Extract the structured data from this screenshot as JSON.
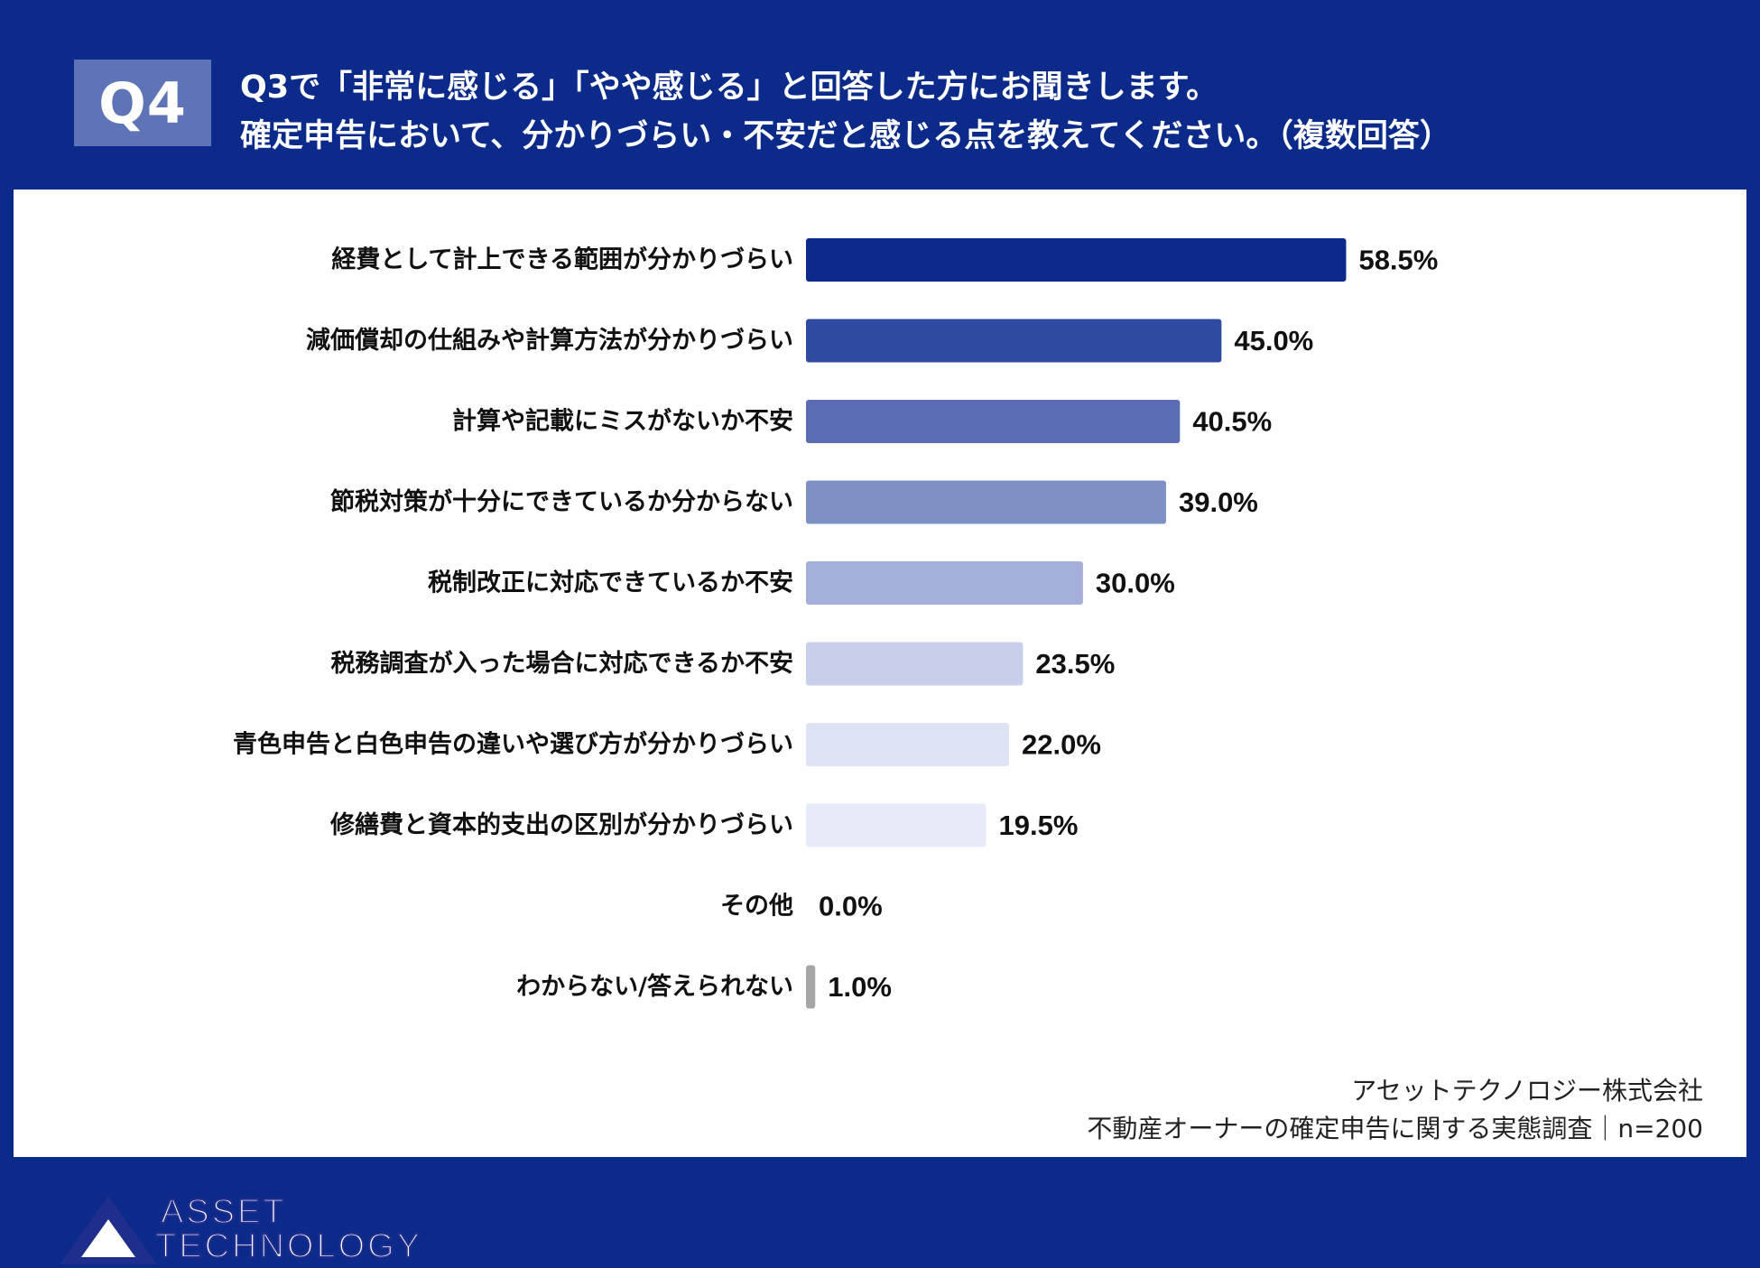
{
  "header": {
    "badge": "Q4",
    "title_line1": "Q3で「非常に感じる」「やや感じる」と回答した方にお聞きします。",
    "title_line2": "確定申告において、分かりづらい・不安だと感じる点を教えてください。（複数回答）"
  },
  "colors": {
    "background": "#0b2a8a",
    "panel": "#ffffff",
    "bar_colors": [
      "#0b2a8a",
      "#2f4aa0",
      "#5a6db3",
      "#7f90c5",
      "#a4b0d9",
      "#c7cfea",
      "#dee4f5",
      "#e6ebf7",
      "#e6ebf7",
      "#a6a6a6"
    ]
  },
  "chart_data": {
    "type": "bar",
    "orientation": "horizontal",
    "categories": [
      "経費として計上できる範囲が分かりづらい",
      "減価償却の仕組みや計算方法が分かりづらい",
      "計算や記載にミスがないか不安",
      "節税対策が十分にできているか分からない",
      "税制改正に対応できているか不安",
      "税務調査が入った場合に対応できるか不安",
      "青色申告と白色申告の違いや選び方が分かりづらい",
      "修繕費と資本的支出の区別が分かりづらい",
      "その他",
      "わからない/答えられない"
    ],
    "values": [
      58.5,
      45.0,
      40.5,
      39.0,
      30.0,
      23.5,
      22.0,
      19.5,
      0.0,
      1.0
    ],
    "value_labels": [
      "58.5%",
      "45.0%",
      "40.5%",
      "39.0%",
      "30.0%",
      "23.5%",
      "22.0%",
      "19.5%",
      "0.0%",
      "1.0%"
    ],
    "xlim": [
      0,
      100
    ],
    "unit": "%",
    "grid": false,
    "legend": "none"
  },
  "logo": {
    "line1": "ASSET",
    "line2": "TECHNOLOGY"
  },
  "footer": {
    "company": "アセットテクノロジー株式会社",
    "survey": "不動産オーナーの確定申告に関する実態調査｜n=200"
  }
}
